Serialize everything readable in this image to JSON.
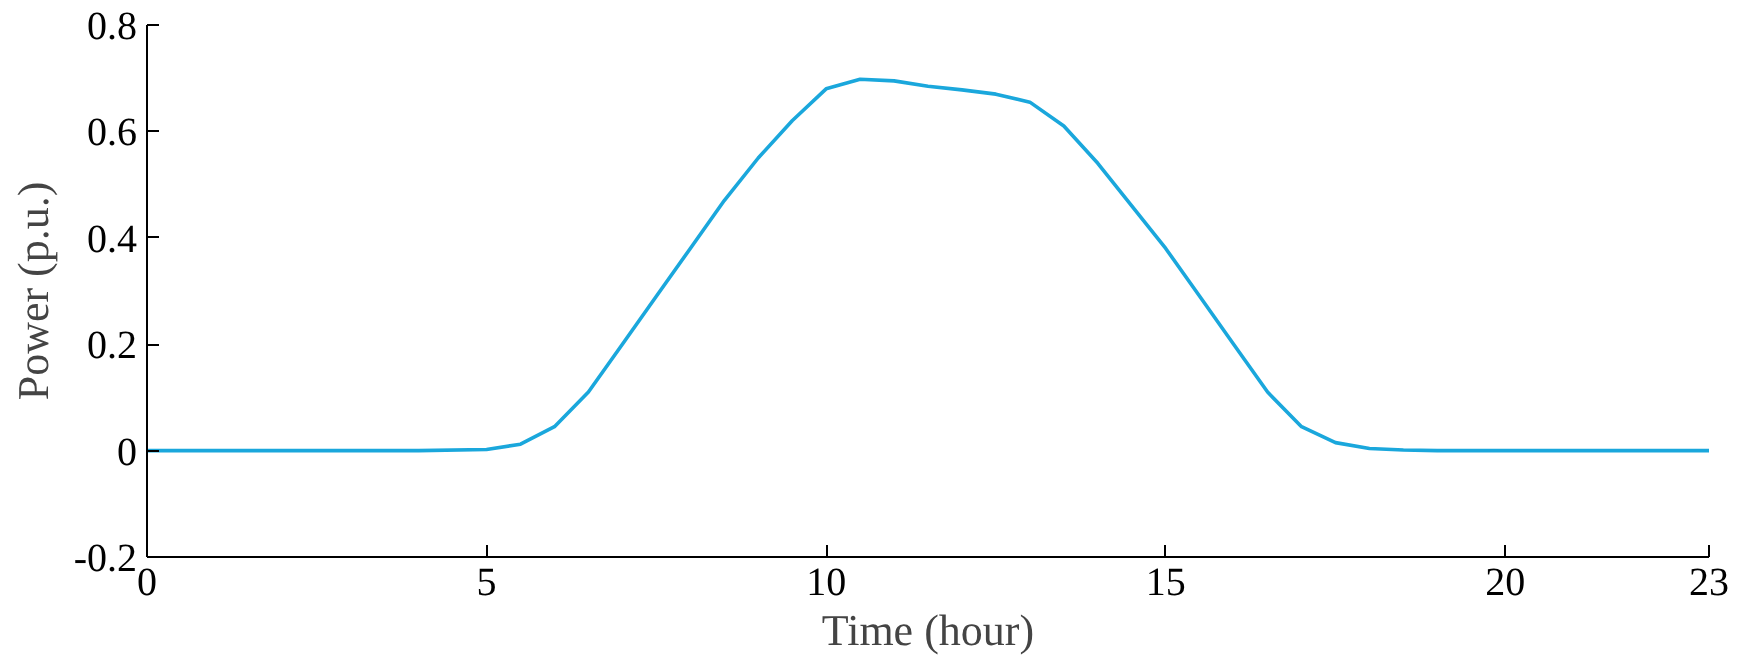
{
  "chart_data": {
    "type": "line",
    "xlabel": "Time (hour)",
    "ylabel": "Power (p.u.)",
    "x": [
      0,
      2,
      4,
      5,
      5.5,
      6,
      6.5,
      7,
      7.5,
      8,
      8.5,
      9,
      9.5,
      10,
      10.5,
      11,
      11.5,
      12,
      12.5,
      13,
      13.5,
      14,
      14.5,
      15,
      15.5,
      16,
      16.5,
      17,
      17.5,
      18,
      18.5,
      19,
      20,
      21,
      22,
      23
    ],
    "series": [
      {
        "color": "#1aa7dc",
        "values": [
          0,
          0,
          0,
          0.002,
          0.012,
          0.045,
          0.11,
          0.2,
          0.29,
          0.38,
          0.47,
          0.55,
          0.62,
          0.68,
          0.698,
          0.695,
          0.685,
          0.678,
          0.67,
          0.655,
          0.61,
          0.54,
          0.46,
          0.38,
          0.29,
          0.2,
          0.11,
          0.045,
          0.015,
          0.004,
          0.001,
          0,
          0,
          0,
          0,
          0
        ]
      }
    ],
    "xlim": [
      0,
      23
    ],
    "ylim": [
      -0.2,
      0.8
    ],
    "xticks": [
      0,
      5,
      10,
      15,
      20,
      23
    ],
    "yticks": [
      {
        "value": -0.2,
        "label": "-0.2"
      },
      0,
      {
        "value": 0.2,
        "label": "0.2"
      },
      {
        "value": 0.4,
        "label": "0.4"
      },
      {
        "value": 0.6,
        "label": "0.6"
      },
      {
        "value": 0.8,
        "label": "0.8"
      }
    ],
    "grid": false,
    "marker": "none",
    "line_style": "solid"
  }
}
